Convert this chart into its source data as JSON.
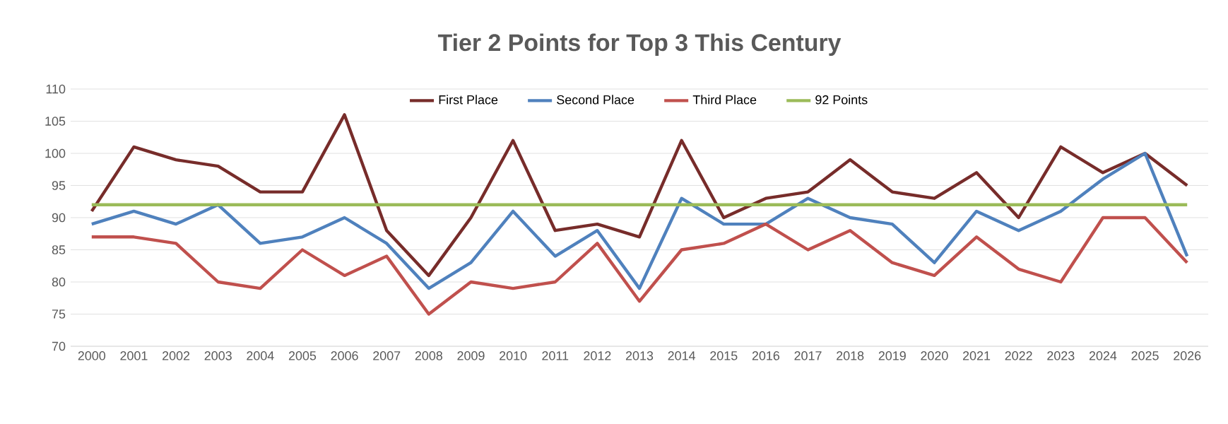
{
  "chart_data": {
    "type": "line",
    "title": "Tier 2 Points for Top 3 This Century",
    "categories": [
      "2000",
      "2001",
      "2002",
      "2003",
      "2004",
      "2005",
      "2006",
      "2007",
      "2008",
      "2009",
      "2010",
      "2011",
      "2012",
      "2013",
      "2014",
      "2015",
      "2016",
      "2017",
      "2018",
      "2019",
      "2020",
      "2021",
      "2022",
      "2023",
      "2024",
      "2025",
      "2026"
    ],
    "series": [
      {
        "name": "First Place",
        "color": "#772c2a",
        "values": [
          91,
          101,
          99,
          98,
          94,
          94,
          106,
          88,
          81,
          90,
          102,
          88,
          89,
          87,
          102,
          90,
          93,
          94,
          99,
          94,
          93,
          97,
          90,
          101,
          97,
          100,
          95
        ]
      },
      {
        "name": "Second Place",
        "color": "#4f81bd",
        "values": [
          89,
          91,
          89,
          92,
          86,
          87,
          90,
          86,
          79,
          83,
          91,
          84,
          88,
          79,
          93,
          89,
          89,
          93,
          90,
          89,
          83,
          91,
          88,
          91,
          96,
          100,
          84
        ]
      },
      {
        "name": "Third Place",
        "color": "#c0504d",
        "values": [
          87,
          87,
          86,
          80,
          79,
          85,
          81,
          84,
          75,
          80,
          79,
          80,
          86,
          77,
          85,
          86,
          89,
          85,
          88,
          83,
          81,
          87,
          82,
          80,
          90,
          90,
          83
        ]
      },
      {
        "name": "92 Points",
        "color": "#9bbb59",
        "values": [
          92,
          92,
          92,
          92,
          92,
          92,
          92,
          92,
          92,
          92,
          92,
          92,
          92,
          92,
          92,
          92,
          92,
          92,
          92,
          92,
          92,
          92,
          92,
          92,
          92,
          92,
          92
        ]
      }
    ],
    "ylim": [
      70,
      110
    ],
    "yticks": [
      70,
      75,
      80,
      85,
      90,
      95,
      100,
      105,
      110
    ],
    "grid": "y",
    "legend": "top",
    "marker": "none",
    "line_style": "solid"
  }
}
